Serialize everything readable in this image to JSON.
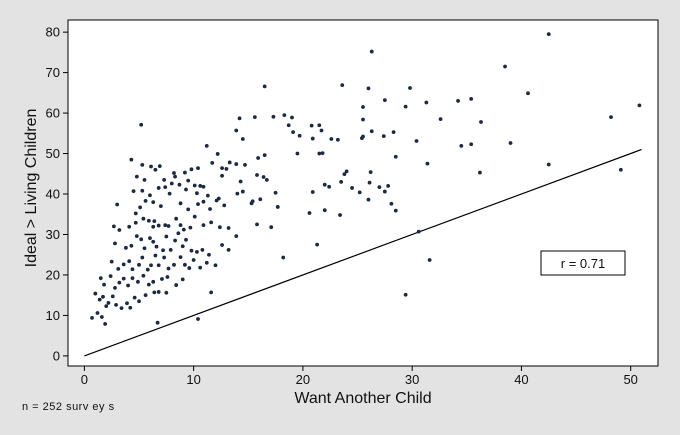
{
  "chart_data": {
    "type": "scatter",
    "xlabel": "Want Another Child",
    "ylabel": "Ideal > Living Children",
    "xlim": [
      -1.5,
      52.5
    ],
    "ylim": [
      -2.5,
      83
    ],
    "x_ticks": [
      0,
      10,
      20,
      30,
      40,
      50
    ],
    "y_ticks": [
      0,
      10,
      20,
      30,
      40,
      50,
      60,
      70,
      80
    ],
    "grid": false,
    "annotation": "r = 0.71",
    "note": "n = 252 surv ey s",
    "reference_line": {
      "from": [
        0,
        0
      ],
      "to": [
        51,
        51
      ]
    },
    "colors": {
      "points": "#1c2a40",
      "line": "#000000",
      "plot_bg": "#ffffff",
      "page_bg": "#e3e3e3"
    },
    "points": [
      [
        42.5,
        79.5
      ],
      [
        26.3,
        75.2
      ],
      [
        38.5,
        71.5
      ],
      [
        16.5,
        66.6
      ],
      [
        23.6,
        66.9
      ],
      [
        26.0,
        66.1
      ],
      [
        29.8,
        66.2
      ],
      [
        27.5,
        63.2
      ],
      [
        34.2,
        63.0
      ],
      [
        35.4,
        63.5
      ],
      [
        40.6,
        64.9
      ],
      [
        50.8,
        61.9
      ],
      [
        36.3,
        57.8
      ],
      [
        31.3,
        62.6
      ],
      [
        25.5,
        61.5
      ],
      [
        29.4,
        61.6
      ],
      [
        32.6,
        58.5
      ],
      [
        48.2,
        59.0
      ],
      [
        14.2,
        58.7
      ],
      [
        15.6,
        59.0
      ],
      [
        17.3,
        59.1
      ],
      [
        18.3,
        59.5
      ],
      [
        19.0,
        58.9
      ],
      [
        25.5,
        58.4
      ],
      [
        5.2,
        57.1
      ],
      [
        13.9,
        55.7
      ],
      [
        14.5,
        53.6
      ],
      [
        18.7,
        57.0
      ],
      [
        20.8,
        56.9
      ],
      [
        21.5,
        57.0
      ],
      [
        22.6,
        53.6
      ],
      [
        23.2,
        53.4
      ],
      [
        26.3,
        55.5
      ],
      [
        19.1,
        55.3
      ],
      [
        19.7,
        54.4
      ],
      [
        20.9,
        53.7
      ],
      [
        21.7,
        55.7
      ],
      [
        25.4,
        53.8
      ],
      [
        25.5,
        54.2
      ],
      [
        27.4,
        54.3
      ],
      [
        28.3,
        55.3
      ],
      [
        30.4,
        53.1
      ],
      [
        34.5,
        51.9
      ],
      [
        35.4,
        52.3
      ],
      [
        39.0,
        52.6
      ],
      [
        11.2,
        51.9
      ],
      [
        12.2,
        49.9
      ],
      [
        11.7,
        47.7
      ],
      [
        12.6,
        46.4
      ],
      [
        13.0,
        46.2
      ],
      [
        13.3,
        47.8
      ],
      [
        13.9,
        47.4
      ],
      [
        14.7,
        47.2
      ],
      [
        15.9,
        48.9
      ],
      [
        16.5,
        49.6
      ],
      [
        19.5,
        50.0
      ],
      [
        21.5,
        50.0
      ],
      [
        21.8,
        50.1
      ],
      [
        28.5,
        49.2
      ],
      [
        31.4,
        47.5
      ],
      [
        42.5,
        47.3
      ],
      [
        4.3,
        48.5
      ],
      [
        5.3,
        47.2
      ],
      [
        6.1,
        46.8
      ],
      [
        6.5,
        46.0
      ],
      [
        6.9,
        46.9
      ],
      [
        8.2,
        45.2
      ],
      [
        9.2,
        45.3
      ],
      [
        9.8,
        46.1
      ],
      [
        10.4,
        46.4
      ],
      [
        4.5,
        40.7
      ],
      [
        4.8,
        44.3
      ],
      [
        5.3,
        40.8
      ],
      [
        5.5,
        43.5
      ],
      [
        6.8,
        41.5
      ],
      [
        7.3,
        43.5
      ],
      [
        7.4,
        41.7
      ],
      [
        7.8,
        40.1
      ],
      [
        8.0,
        42.6
      ],
      [
        8.3,
        44.3
      ],
      [
        8.7,
        42.3
      ],
      [
        9.3,
        41.1
      ],
      [
        9.5,
        43.3
      ],
      [
        10.1,
        42.1
      ],
      [
        10.3,
        40.2
      ],
      [
        10.6,
        42.0
      ],
      [
        10.9,
        41.8
      ],
      [
        11.3,
        39.6
      ],
      [
        12.6,
        44.5
      ],
      [
        14.3,
        43.1
      ],
      [
        14.5,
        40.6
      ],
      [
        15.4,
        38.2
      ],
      [
        15.8,
        44.7
      ],
      [
        16.4,
        44.2
      ],
      [
        16.7,
        43.5
      ],
      [
        17.5,
        40.3
      ],
      [
        20.9,
        40.5
      ],
      [
        22.0,
        42.3
      ],
      [
        22.4,
        41.8
      ],
      [
        23.5,
        43.0
      ],
      [
        23.8,
        44.9
      ],
      [
        24.0,
        45.6
      ],
      [
        24.5,
        41.5
      ],
      [
        26.1,
        42.8
      ],
      [
        26.2,
        45.4
      ],
      [
        27.0,
        41.7
      ],
      [
        27.5,
        40.6
      ],
      [
        27.8,
        42.0
      ],
      [
        36.2,
        45.3
      ],
      [
        49.1,
        46.0
      ],
      [
        4.7,
        35.2
      ],
      [
        5.1,
        36.7
      ],
      [
        5.6,
        38.3
      ],
      [
        6.0,
        39.7
      ],
      [
        6.3,
        38.0
      ],
      [
        7.0,
        37.0
      ],
      [
        8.8,
        37.7
      ],
      [
        9.5,
        36.2
      ],
      [
        10.4,
        37.5
      ],
      [
        10.9,
        38.1
      ],
      [
        11.5,
        36.3
      ],
      [
        12.1,
        38.4
      ],
      [
        12.3,
        38.9
      ],
      [
        12.8,
        37.2
      ],
      [
        14.0,
        40.1
      ],
      [
        15.3,
        37.7
      ],
      [
        16.1,
        38.7
      ],
      [
        17.7,
        36.8
      ],
      [
        20.6,
        35.3
      ],
      [
        22.0,
        36.0
      ],
      [
        23.4,
        34.8
      ],
      [
        25.2,
        40.4
      ],
      [
        26.0,
        38.6
      ],
      [
        28.1,
        37.6
      ],
      [
        28.5,
        35.9
      ],
      [
        3.0,
        37.4
      ],
      [
        2.7,
        32.0
      ],
      [
        3.2,
        31.1
      ],
      [
        4.1,
        31.9
      ],
      [
        4.7,
        32.9
      ],
      [
        5.4,
        33.9
      ],
      [
        5.9,
        33.4
      ],
      [
        6.3,
        31.9
      ],
      [
        6.4,
        33.3
      ],
      [
        6.8,
        32.2
      ],
      [
        7.4,
        32.3
      ],
      [
        7.7,
        32.1
      ],
      [
        8.4,
        33.9
      ],
      [
        8.8,
        32.3
      ],
      [
        9.1,
        31.2
      ],
      [
        9.7,
        31.7
      ],
      [
        10.1,
        34.4
      ],
      [
        10.9,
        32.3
      ],
      [
        11.6,
        33.0
      ],
      [
        12.4,
        31.8
      ],
      [
        13.2,
        31.6
      ],
      [
        13.9,
        29.6
      ],
      [
        15.8,
        32.5
      ],
      [
        17.1,
        31.8
      ],
      [
        21.3,
        27.5
      ],
      [
        30.6,
        30.7
      ],
      [
        31.6,
        23.7
      ],
      [
        2.8,
        27.8
      ],
      [
        3.8,
        26.7
      ],
      [
        4.3,
        27.2
      ],
      [
        4.8,
        29.6
      ],
      [
        5.2,
        28.8
      ],
      [
        5.5,
        26.6
      ],
      [
        6.0,
        29.1
      ],
      [
        6.3,
        28.2
      ],
      [
        6.6,
        27.0
      ],
      [
        7.2,
        26.1
      ],
      [
        7.5,
        29.5
      ],
      [
        7.9,
        26.2
      ],
      [
        8.3,
        28.5
      ],
      [
        8.6,
        30.3
      ],
      [
        9.0,
        27.1
      ],
      [
        9.3,
        28.7
      ],
      [
        9.8,
        26.0
      ],
      [
        10.3,
        25.7
      ],
      [
        10.8,
        26.2
      ],
      [
        11.4,
        25.0
      ],
      [
        12.6,
        27.4
      ],
      [
        13.2,
        26.2
      ],
      [
        18.2,
        24.3
      ],
      [
        2.5,
        23.3
      ],
      [
        3.1,
        21.5
      ],
      [
        3.6,
        22.6
      ],
      [
        4.1,
        23.4
      ],
      [
        4.4,
        21.4
      ],
      [
        5.0,
        22.5
      ],
      [
        5.3,
        24.3
      ],
      [
        5.8,
        21.3
      ],
      [
        6.1,
        22.4
      ],
      [
        6.5,
        24.8
      ],
      [
        6.8,
        22.4
      ],
      [
        7.3,
        24.3
      ],
      [
        7.7,
        21.6
      ],
      [
        8.2,
        22.5
      ],
      [
        8.8,
        24.4
      ],
      [
        9.2,
        22.5
      ],
      [
        9.6,
        21.7
      ],
      [
        10.0,
        23.7
      ],
      [
        10.6,
        21.8
      ],
      [
        11.2,
        23.0
      ],
      [
        12.0,
        22.4
      ],
      [
        1.0,
        15.4
      ],
      [
        1.5,
        19.2
      ],
      [
        1.8,
        17.6
      ],
      [
        2.4,
        19.7
      ],
      [
        2.8,
        16.8
      ],
      [
        3.2,
        18.1
      ],
      [
        3.6,
        19.1
      ],
      [
        4.0,
        17.4
      ],
      [
        4.4,
        19.2
      ],
      [
        4.9,
        18.3
      ],
      [
        5.4,
        19.8
      ],
      [
        5.9,
        17.6
      ],
      [
        6.3,
        18.3
      ],
      [
        7.1,
        19.0
      ],
      [
        7.6,
        19.5
      ],
      [
        8.4,
        17.5
      ],
      [
        9.0,
        18.9
      ],
      [
        1.4,
        13.9
      ],
      [
        1.7,
        14.6
      ],
      [
        2.0,
        12.3
      ],
      [
        2.2,
        13.1
      ],
      [
        2.6,
        14.7
      ],
      [
        2.9,
        12.6
      ],
      [
        3.4,
        11.8
      ],
      [
        3.9,
        13.0
      ],
      [
        4.2,
        11.9
      ],
      [
        4.6,
        14.4
      ],
      [
        5.0,
        13.5
      ],
      [
        5.6,
        15.0
      ],
      [
        6.4,
        15.7
      ],
      [
        6.8,
        15.8
      ],
      [
        7.5,
        15.6
      ],
      [
        11.6,
        15.7
      ],
      [
        29.4,
        15.1
      ],
      [
        0.7,
        9.4
      ],
      [
        1.2,
        10.6
      ],
      [
        1.6,
        9.6
      ],
      [
        1.9,
        7.9
      ],
      [
        6.7,
        8.2
      ],
      [
        10.4,
        9.1
      ]
    ]
  }
}
